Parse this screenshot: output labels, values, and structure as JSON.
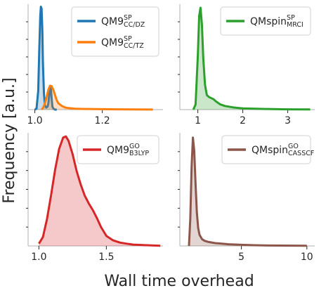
{
  "figure": {
    "ylabel": "Frequency [a.u.]",
    "xlabel": "Wall time overhead",
    "background": "#ffffff",
    "axis_color": "#b0b0b0",
    "tick_color": "#262626"
  },
  "chart_data": [
    {
      "type": "area",
      "panel": "top-left",
      "xlim": [
        0.98,
        1.38
      ],
      "xticks": [
        1.0,
        1.2
      ],
      "tick_labels": [
        "1.0",
        "1.2"
      ],
      "ylim": [
        0,
        1.0
      ],
      "grid": false,
      "legend_placement": "top-right",
      "series": [
        {
          "name": "QM9",
          "sup": "SP",
          "sub": "CC/DZ",
          "color": "#1f77b4",
          "x": [
            1.0,
            1.005,
            1.01,
            1.013,
            1.016,
            1.018,
            1.02,
            1.022,
            1.024,
            1.027,
            1.03,
            1.034,
            1.038,
            1.04,
            1.043,
            1.046,
            1.048,
            1.05,
            1.052,
            1.055,
            1.06,
            1.065
          ],
          "y": [
            0.0,
            0.01,
            0.18,
            0.55,
            0.9,
            0.99,
            0.97,
            0.78,
            0.45,
            0.15,
            0.04,
            0.02,
            0.03,
            0.06,
            0.15,
            0.22,
            0.19,
            0.1,
            0.03,
            0.01,
            0.0,
            0.0
          ]
        },
        {
          "name": "QM9",
          "sup": "SP",
          "sub": "CC/TZ",
          "color": "#ff7f0e",
          "x": [
            1.02,
            1.025,
            1.03,
            1.035,
            1.04,
            1.045,
            1.05,
            1.055,
            1.06,
            1.065,
            1.07,
            1.08,
            1.09,
            1.1,
            1.12,
            1.15,
            1.2,
            1.25,
            1.3,
            1.35
          ],
          "y": [
            0.0,
            0.02,
            0.06,
            0.12,
            0.19,
            0.23,
            0.225,
            0.19,
            0.14,
            0.09,
            0.06,
            0.035,
            0.02,
            0.015,
            0.008,
            0.006,
            0.004,
            0.003,
            0.002,
            0.001
          ]
        }
      ]
    },
    {
      "type": "area",
      "panel": "top-right",
      "xlim": [
        0.6,
        3.6
      ],
      "xticks": [
        1,
        2,
        3
      ],
      "tick_labels": [
        "1",
        "2",
        "3"
      ],
      "ylim": [
        0,
        1.0
      ],
      "grid": false,
      "legend_placement": "top-right",
      "series": [
        {
          "name": "QMspin",
          "sup": "SP",
          "sub": "MRCI",
          "color": "#2ca02c",
          "x": [
            0.9,
            0.95,
            1.0,
            1.03,
            1.06,
            1.09,
            1.12,
            1.16,
            1.2,
            1.25,
            1.3,
            1.35,
            1.4,
            1.5,
            1.6,
            1.8,
            2.0,
            2.5,
            3.0,
            3.5
          ],
          "y": [
            0.0,
            0.05,
            0.52,
            0.9,
            0.98,
            0.82,
            0.5,
            0.24,
            0.14,
            0.12,
            0.11,
            0.1,
            0.08,
            0.05,
            0.035,
            0.02,
            0.012,
            0.006,
            0.003,
            0.002
          ]
        }
      ]
    },
    {
      "type": "area",
      "panel": "bottom-left",
      "xlim": [
        0.92,
        1.92
      ],
      "xticks": [
        1.0,
        1.5
      ],
      "tick_labels": [
        "1.0",
        "1.5"
      ],
      "ylim": [
        0,
        1.0
      ],
      "grid": false,
      "legend_placement": "top-right",
      "series": [
        {
          "name": "QM9",
          "sup": "GO",
          "sub": "B3LYP",
          "color": "#d62728",
          "x": [
            1.0,
            1.03,
            1.06,
            1.09,
            1.12,
            1.15,
            1.18,
            1.2,
            1.22,
            1.25,
            1.28,
            1.31,
            1.34,
            1.37,
            1.4,
            1.43,
            1.46,
            1.5,
            1.55,
            1.6,
            1.65,
            1.7,
            1.8,
            1.9
          ],
          "y": [
            0.02,
            0.08,
            0.24,
            0.45,
            0.68,
            0.87,
            0.97,
            0.98,
            0.94,
            0.82,
            0.67,
            0.55,
            0.45,
            0.38,
            0.32,
            0.25,
            0.17,
            0.09,
            0.05,
            0.03,
            0.02,
            0.012,
            0.006,
            0.002
          ]
        }
      ]
    },
    {
      "type": "area",
      "panel": "bottom-right",
      "xlim": [
        0.3,
        10.6
      ],
      "xticks": [
        5,
        10
      ],
      "tick_labels": [
        "5",
        "10"
      ],
      "ylim": [
        0,
        1.0
      ],
      "grid": false,
      "legend_placement": "top-right",
      "series": [
        {
          "name": "QMspin",
          "sup": "GO",
          "sub": "CASSCF",
          "color": "#8c564b",
          "x": [
            1.0,
            1.1,
            1.2,
            1.3,
            1.4,
            1.5,
            1.6,
            1.7,
            1.8,
            2.0,
            2.2,
            2.5,
            3.0,
            3.5,
            4.0,
            5.0,
            6.0,
            7.0,
            8.0,
            10.0
          ],
          "y": [
            0.0,
            0.25,
            0.72,
            0.97,
            0.85,
            0.55,
            0.3,
            0.16,
            0.1,
            0.06,
            0.045,
            0.035,
            0.025,
            0.02,
            0.015,
            0.01,
            0.006,
            0.004,
            0.003,
            0.002
          ]
        }
      ]
    }
  ]
}
